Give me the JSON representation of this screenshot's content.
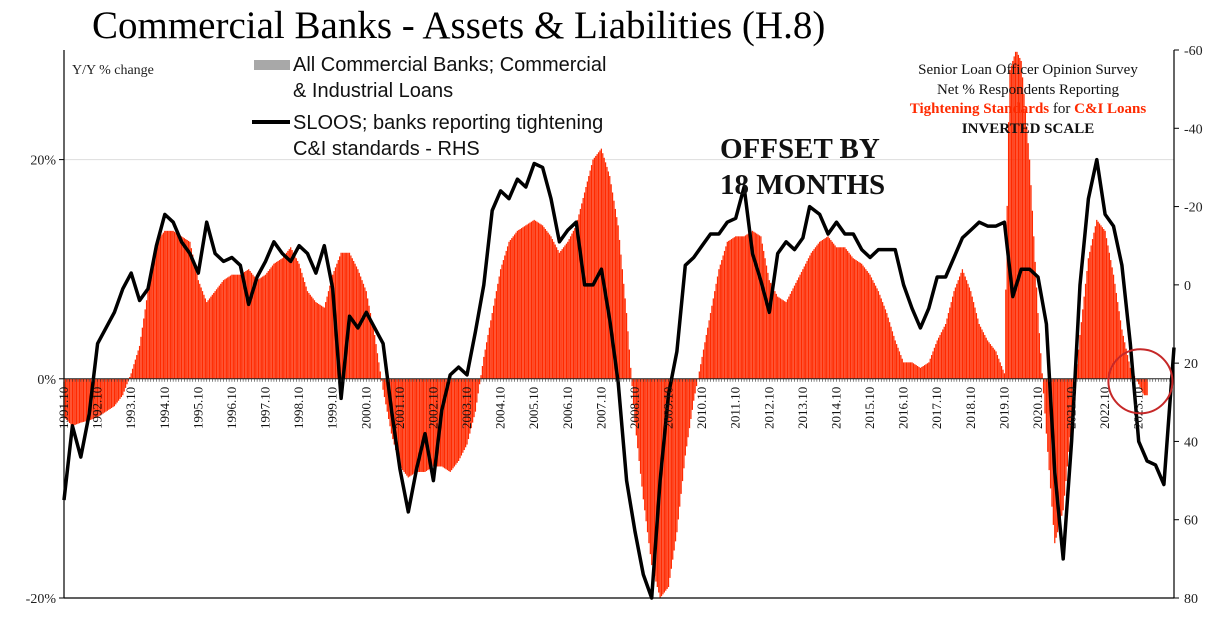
{
  "chart_data": {
    "type": "bar",
    "title": "Commercial Banks - Assets & Liabilities (H.8)",
    "ylabel": "Y/Y % change",
    "ylim": [
      -20,
      30
    ],
    "y_ticks": [
      {
        "v": 20,
        "label": "20%"
      },
      {
        "v": 0,
        "label": "0%"
      },
      {
        "v": -20,
        "label": "-20%"
      }
    ],
    "y2lim": [
      -60,
      80
    ],
    "y2_inverted": true,
    "y2_ticks": [
      {
        "v": -60,
        "label": "-60"
      },
      {
        "v": -40,
        "label": "-40"
      },
      {
        "v": -20,
        "label": "-20"
      },
      {
        "v": 0,
        "label": "0"
      },
      {
        "v": 20,
        "label": "20"
      },
      {
        "v": 40,
        "label": "40"
      },
      {
        "v": 60,
        "label": "60"
      },
      {
        "v": 80,
        "label": "80"
      }
    ],
    "xlim": [
      1991.75,
      2024.8
    ],
    "x_ticks": [
      "1991.10",
      "1992.10",
      "1993.10",
      "1994.10",
      "1995.10",
      "1996.10",
      "1997.10",
      "1998.10",
      "1999.10",
      "2000.10",
      "2001.10",
      "2002.10",
      "2003.10",
      "2004.10",
      "2005.10",
      "2006.10",
      "2007.10",
      "2008.10",
      "2009.10",
      "2010.10",
      "2011.10",
      "2012.10",
      "2013.10",
      "2014.10",
      "2015.10",
      "2016.10",
      "2017.10",
      "2018.10",
      "2019.10",
      "2020.10",
      "2021.10",
      "2022.10",
      "2023.10"
    ],
    "legend": {
      "position": "top-left",
      "bars_label": "All Commercial Banks; Commercial",
      "bars_label_2": "& Industrial Loans",
      "line_label": "SLOOS; banks reporting tightening",
      "line_label_2": "C&I standards - RHS"
    },
    "rhs_note": {
      "line1": "Senior Loan Officer Opinion Survey",
      "line2": "Net % Respondents Reporting",
      "line3_red_a": "Tightening Standards",
      "line3_mid": " for ",
      "line3_red_b": "C&I Loans",
      "line4": "INVERTED SCALE"
    },
    "annotation": {
      "line1": "OFFSET BY",
      "line2": "18 MONTHS"
    },
    "highlight_circle": {
      "x": 2023.8,
      "y": 0.5
    },
    "series": [
      {
        "name": "All Commercial Banks; Commercial & Industrial Loans",
        "axis": "left",
        "color": "#ff2a00",
        "points": [
          [
            1991.75,
            -3.5
          ],
          [
            1992.0,
            -4.3
          ],
          [
            1992.25,
            -4.0
          ],
          [
            1992.5,
            -3.8
          ],
          [
            1992.75,
            -3.5
          ],
          [
            1993.0,
            -3.0
          ],
          [
            1993.25,
            -2.5
          ],
          [
            1993.5,
            -1.5
          ],
          [
            1993.75,
            0.5
          ],
          [
            1994.0,
            3.0
          ],
          [
            1994.25,
            8.0
          ],
          [
            1994.5,
            12.5
          ],
          [
            1994.75,
            13.5
          ],
          [
            1995.0,
            13.5
          ],
          [
            1995.25,
            13.0
          ],
          [
            1995.5,
            12.5
          ],
          [
            1995.75,
            9.0
          ],
          [
            1996.0,
            7.0
          ],
          [
            1996.25,
            8.0
          ],
          [
            1996.5,
            9.0
          ],
          [
            1996.75,
            9.5
          ],
          [
            1997.0,
            9.5
          ],
          [
            1997.25,
            10.0
          ],
          [
            1997.5,
            9.0
          ],
          [
            1997.75,
            9.5
          ],
          [
            1998.0,
            10.5
          ],
          [
            1998.25,
            11.0
          ],
          [
            1998.5,
            12.0
          ],
          [
            1998.75,
            10.5
          ],
          [
            1999.0,
            8.0
          ],
          [
            1999.25,
            7.0
          ],
          [
            1999.5,
            6.5
          ],
          [
            1999.75,
            9.5
          ],
          [
            2000.0,
            11.5
          ],
          [
            2000.25,
            11.5
          ],
          [
            2000.5,
            10.0
          ],
          [
            2000.75,
            8.0
          ],
          [
            2001.0,
            4.0
          ],
          [
            2001.25,
            -1.0
          ],
          [
            2001.5,
            -5.0
          ],
          [
            2001.75,
            -8.0
          ],
          [
            2002.0,
            -9.0
          ],
          [
            2002.25,
            -8.5
          ],
          [
            2002.5,
            -8.5
          ],
          [
            2002.75,
            -8.0
          ],
          [
            2003.0,
            -8.0
          ],
          [
            2003.25,
            -8.5
          ],
          [
            2003.5,
            -7.5
          ],
          [
            2003.75,
            -6.0
          ],
          [
            2004.0,
            -3.0
          ],
          [
            2004.25,
            2.0
          ],
          [
            2004.5,
            6.0
          ],
          [
            2004.75,
            10.0
          ],
          [
            2005.0,
            12.5
          ],
          [
            2005.25,
            13.5
          ],
          [
            2005.5,
            14.0
          ],
          [
            2005.75,
            14.5
          ],
          [
            2006.0,
            14.0
          ],
          [
            2006.25,
            13.0
          ],
          [
            2006.5,
            11.5
          ],
          [
            2006.75,
            12.5
          ],
          [
            2007.0,
            14.0
          ],
          [
            2007.25,
            17.0
          ],
          [
            2007.5,
            20.0
          ],
          [
            2007.75,
            21.0
          ],
          [
            2008.0,
            18.5
          ],
          [
            2008.25,
            14.0
          ],
          [
            2008.5,
            6.0
          ],
          [
            2008.75,
            -4.0
          ],
          [
            2009.0,
            -11.0
          ],
          [
            2009.25,
            -17.0
          ],
          [
            2009.5,
            -20.0
          ],
          [
            2009.75,
            -19.0
          ],
          [
            2010.0,
            -14.0
          ],
          [
            2010.25,
            -7.0
          ],
          [
            2010.5,
            -2.0
          ],
          [
            2010.75,
            2.0
          ],
          [
            2011.0,
            6.0
          ],
          [
            2011.25,
            10.0
          ],
          [
            2011.5,
            12.5
          ],
          [
            2011.75,
            13.0
          ],
          [
            2012.0,
            13.0
          ],
          [
            2012.25,
            13.5
          ],
          [
            2012.5,
            13.0
          ],
          [
            2012.75,
            9.0
          ],
          [
            2013.0,
            7.5
          ],
          [
            2013.25,
            7.0
          ],
          [
            2013.5,
            8.5
          ],
          [
            2013.75,
            10.0
          ],
          [
            2014.0,
            11.5
          ],
          [
            2014.25,
            12.5
          ],
          [
            2014.5,
            13.0
          ],
          [
            2014.75,
            12.0
          ],
          [
            2015.0,
            12.0
          ],
          [
            2015.25,
            11.0
          ],
          [
            2015.5,
            10.5
          ],
          [
            2015.75,
            9.5
          ],
          [
            2016.0,
            8.0
          ],
          [
            2016.25,
            6.0
          ],
          [
            2016.5,
            3.5
          ],
          [
            2016.75,
            1.5
          ],
          [
            2017.0,
            1.5
          ],
          [
            2017.25,
            1.0
          ],
          [
            2017.5,
            1.5
          ],
          [
            2017.75,
            3.5
          ],
          [
            2018.0,
            5.0
          ],
          [
            2018.25,
            8.0
          ],
          [
            2018.5,
            10.0
          ],
          [
            2018.75,
            8.0
          ],
          [
            2019.0,
            5.0
          ],
          [
            2019.25,
            3.5
          ],
          [
            2019.5,
            2.5
          ],
          [
            2019.75,
            0.5
          ],
          [
            2019.9,
            28.0
          ],
          [
            2020.1,
            30.0
          ],
          [
            2020.25,
            29.0
          ],
          [
            2020.5,
            20.0
          ],
          [
            2020.75,
            6.0
          ],
          [
            2021.0,
            -5.0
          ],
          [
            2021.25,
            -15.0
          ],
          [
            2021.5,
            -12.0
          ],
          [
            2021.75,
            -4.0
          ],
          [
            2022.0,
            4.0
          ],
          [
            2022.25,
            11.0
          ],
          [
            2022.5,
            14.5
          ],
          [
            2022.75,
            13.5
          ],
          [
            2023.0,
            9.5
          ],
          [
            2023.25,
            4.5
          ],
          [
            2023.5,
            1.0
          ],
          [
            2023.75,
            -0.5
          ],
          [
            2023.9,
            -1.5
          ],
          [
            2024.0,
            -1.5
          ]
        ]
      },
      {
        "name": "SLOOS; banks reporting tightening C&I standards - RHS",
        "axis": "right",
        "color": "#000000",
        "points": [
          [
            1991.75,
            55
          ],
          [
            1992.0,
            36
          ],
          [
            1992.25,
            44
          ],
          [
            1992.5,
            33
          ],
          [
            1992.75,
            15
          ],
          [
            1993.0,
            11
          ],
          [
            1993.25,
            7
          ],
          [
            1993.5,
            1
          ],
          [
            1993.75,
            -3
          ],
          [
            1994.0,
            4
          ],
          [
            1994.25,
            1
          ],
          [
            1994.5,
            -10
          ],
          [
            1994.75,
            -18
          ],
          [
            1995.0,
            -16
          ],
          [
            1995.25,
            -11
          ],
          [
            1995.5,
            -8
          ],
          [
            1995.75,
            -3
          ],
          [
            1996.0,
            -16
          ],
          [
            1996.25,
            -8
          ],
          [
            1996.5,
            -6
          ],
          [
            1996.75,
            -7
          ],
          [
            1997.0,
            -5
          ],
          [
            1997.25,
            5
          ],
          [
            1997.5,
            -2
          ],
          [
            1997.75,
            -6
          ],
          [
            1998.0,
            -11
          ],
          [
            1998.25,
            -8
          ],
          [
            1998.5,
            -6
          ],
          [
            1998.75,
            -10
          ],
          [
            1999.0,
            -8
          ],
          [
            1999.25,
            -3
          ],
          [
            1999.5,
            -10
          ],
          [
            1999.75,
            1
          ],
          [
            2000.0,
            29
          ],
          [
            2000.25,
            8
          ],
          [
            2000.5,
            11
          ],
          [
            2000.75,
            7
          ],
          [
            2001.0,
            11
          ],
          [
            2001.25,
            15
          ],
          [
            2001.5,
            32
          ],
          [
            2001.75,
            47
          ],
          [
            2002.0,
            58
          ],
          [
            2002.25,
            47
          ],
          [
            2002.5,
            38
          ],
          [
            2002.75,
            50
          ],
          [
            2003.0,
            32
          ],
          [
            2003.25,
            23
          ],
          [
            2003.5,
            21
          ],
          [
            2003.75,
            23
          ],
          [
            2004.0,
            12
          ],
          [
            2004.25,
            0
          ],
          [
            2004.5,
            -19
          ],
          [
            2004.75,
            -24
          ],
          [
            2005.0,
            -22
          ],
          [
            2005.25,
            -27
          ],
          [
            2005.5,
            -25
          ],
          [
            2005.75,
            -31
          ],
          [
            2006.0,
            -30
          ],
          [
            2006.25,
            -22
          ],
          [
            2006.5,
            -11
          ],
          [
            2006.75,
            -14
          ],
          [
            2007.0,
            -16
          ],
          [
            2007.25,
            0
          ],
          [
            2007.5,
            0
          ],
          [
            2007.75,
            -4
          ],
          [
            2008.0,
            9
          ],
          [
            2008.25,
            25
          ],
          [
            2008.5,
            50
          ],
          [
            2008.75,
            63
          ],
          [
            2009.0,
            74
          ],
          [
            2009.25,
            80
          ],
          [
            2009.5,
            50
          ],
          [
            2009.75,
            28
          ],
          [
            2010.0,
            17
          ],
          [
            2010.25,
            -5
          ],
          [
            2010.5,
            -7
          ],
          [
            2010.75,
            -10
          ],
          [
            2011.0,
            -13
          ],
          [
            2011.25,
            -13
          ],
          [
            2011.5,
            -16
          ],
          [
            2011.75,
            -17
          ],
          [
            2012.0,
            -25
          ],
          [
            2012.25,
            -8
          ],
          [
            2012.5,
            -1
          ],
          [
            2012.75,
            7
          ],
          [
            2013.0,
            -8
          ],
          [
            2013.25,
            -11
          ],
          [
            2013.5,
            -9
          ],
          [
            2013.75,
            -12
          ],
          [
            2013.95,
            -20
          ],
          [
            2014.25,
            -18
          ],
          [
            2014.5,
            -13
          ],
          [
            2014.75,
            -16
          ],
          [
            2015.0,
            -13
          ],
          [
            2015.25,
            -13
          ],
          [
            2015.5,
            -9
          ],
          [
            2015.75,
            -7
          ],
          [
            2016.0,
            -9
          ],
          [
            2016.25,
            -9
          ],
          [
            2016.5,
            -9
          ],
          [
            2016.75,
            0
          ],
          [
            2017.0,
            6
          ],
          [
            2017.25,
            11
          ],
          [
            2017.5,
            6
          ],
          [
            2017.75,
            -2
          ],
          [
            2018.0,
            -2
          ],
          [
            2018.25,
            -7
          ],
          [
            2018.5,
            -12
          ],
          [
            2018.75,
            -14
          ],
          [
            2019.0,
            -16
          ],
          [
            2019.25,
            -15
          ],
          [
            2019.5,
            -15
          ],
          [
            2019.75,
            -16
          ],
          [
            2020.0,
            3
          ],
          [
            2020.25,
            -4
          ],
          [
            2020.5,
            -4
          ],
          [
            2020.75,
            -2
          ],
          [
            2021.0,
            10
          ],
          [
            2021.25,
            48
          ],
          [
            2021.5,
            70
          ],
          [
            2021.75,
            40
          ],
          [
            2022.0,
            0
          ],
          [
            2022.25,
            -22
          ],
          [
            2022.5,
            -32
          ],
          [
            2022.75,
            -18
          ],
          [
            2023.0,
            -15
          ],
          [
            2023.25,
            -5
          ],
          [
            2023.5,
            15
          ],
          [
            2023.75,
            40
          ],
          [
            2024.0,
            45
          ],
          [
            2024.25,
            46
          ],
          [
            2024.5,
            51
          ],
          [
            2024.8,
            16
          ]
        ]
      }
    ]
  }
}
